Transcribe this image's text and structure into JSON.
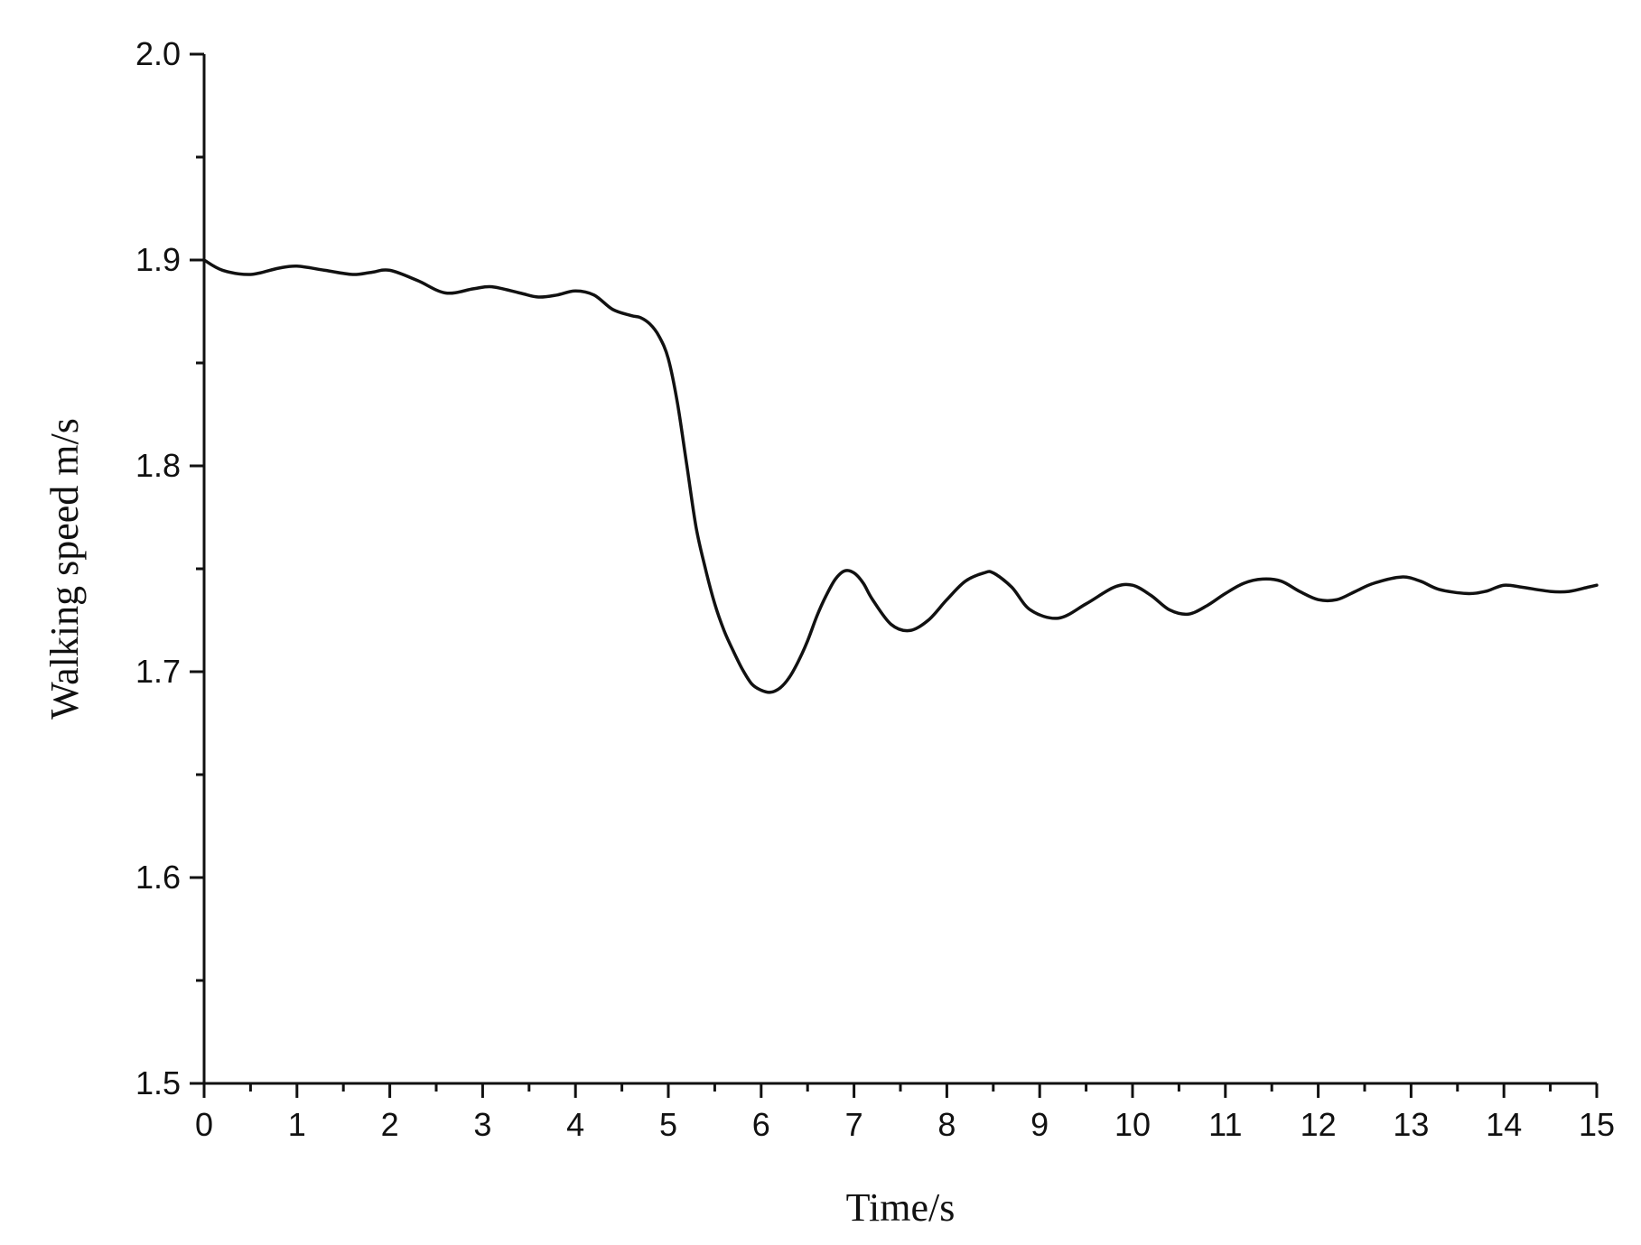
{
  "chart_data": {
    "type": "line",
    "title": "",
    "xlabel": "Time/s",
    "ylabel": "Walking speed  m/s",
    "xlim": [
      0,
      15
    ],
    "ylim": [
      1.5,
      2.0
    ],
    "x_ticks": [
      "0",
      "1",
      "2",
      "3",
      "4",
      "5",
      "6",
      "7",
      "8",
      "9",
      "10",
      "11",
      "12",
      "13",
      "14",
      "15"
    ],
    "y_ticks": [
      "1.5",
      "1.6",
      "1.7",
      "1.8",
      "1.9",
      "2.0"
    ],
    "grid": false,
    "legend": "none",
    "line_color": "#111111",
    "series": [
      {
        "x": [
          0,
          0.2,
          0.5,
          0.8,
          1.0,
          1.3,
          1.6,
          1.8,
          2.0,
          2.3,
          2.6,
          2.9,
          3.1,
          3.4,
          3.6,
          3.8,
          4.0,
          4.2,
          4.4,
          4.6,
          4.7,
          4.8,
          4.9,
          5.0,
          5.1,
          5.2,
          5.3,
          5.4,
          5.5,
          5.6,
          5.7,
          5.8,
          5.9,
          6.0,
          6.1,
          6.2,
          6.3,
          6.4,
          6.5,
          6.6,
          6.7,
          6.8,
          6.9,
          7.0,
          7.1,
          7.2,
          7.4,
          7.6,
          7.8,
          8.0,
          8.2,
          8.4,
          8.5,
          8.7,
          8.9,
          9.2,
          9.5,
          9.8,
          10.0,
          10.2,
          10.4,
          10.6,
          10.8,
          11.0,
          11.2,
          11.4,
          11.6,
          11.8,
          12.0,
          12.2,
          12.4,
          12.6,
          12.9,
          13.1,
          13.3,
          13.6,
          13.8,
          14.0,
          14.2,
          14.5,
          14.7,
          14.9,
          15.0
        ],
        "y": [
          1.9,
          1.895,
          1.893,
          1.896,
          1.897,
          1.895,
          1.893,
          1.894,
          1.895,
          1.89,
          1.884,
          1.886,
          1.887,
          1.884,
          1.882,
          1.883,
          1.885,
          1.883,
          1.876,
          1.873,
          1.872,
          1.869,
          1.863,
          1.852,
          1.83,
          1.8,
          1.77,
          1.75,
          1.733,
          1.72,
          1.71,
          1.701,
          1.694,
          1.691,
          1.69,
          1.692,
          1.697,
          1.705,
          1.715,
          1.727,
          1.737,
          1.745,
          1.749,
          1.748,
          1.743,
          1.735,
          1.723,
          1.72,
          1.725,
          1.735,
          1.744,
          1.748,
          1.748,
          1.741,
          1.73,
          1.726,
          1.733,
          1.741,
          1.742,
          1.737,
          1.73,
          1.728,
          1.732,
          1.738,
          1.743,
          1.745,
          1.744,
          1.739,
          1.735,
          1.735,
          1.739,
          1.743,
          1.746,
          1.744,
          1.74,
          1.738,
          1.739,
          1.742,
          1.741,
          1.739,
          1.739,
          1.741,
          1.742
        ]
      }
    ]
  }
}
